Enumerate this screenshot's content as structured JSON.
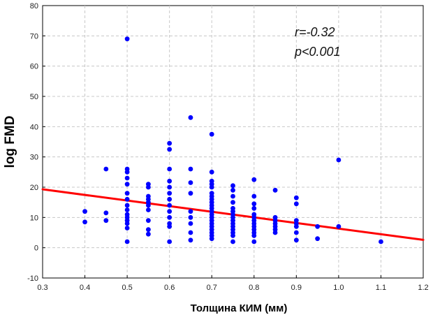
{
  "chart_data": {
    "type": "scatter",
    "xlabel": "Толщина КИМ (мм)",
    "ylabel": "log FMD",
    "xlim": [
      0.3,
      1.2
    ],
    "ylim": [
      -10,
      80
    ],
    "x_ticks": [
      "0.3",
      "0.4",
      "0.5",
      "0.6",
      "0.7",
      "0.8",
      "0.9",
      "1.0",
      "1.1",
      "1.2"
    ],
    "y_ticks": [
      "-10",
      "0",
      "10",
      "20",
      "30",
      "40",
      "50",
      "60",
      "70",
      "80"
    ],
    "grid": true,
    "point_color": "#0000ff",
    "line_color": "#ff0000",
    "annotations": [
      "r=-0.32",
      "p<0.001"
    ],
    "points": [
      {
        "x": 0.4,
        "y": 12
      },
      {
        "x": 0.4,
        "y": 8.5
      },
      {
        "x": 0.45,
        "y": 26
      },
      {
        "x": 0.45,
        "y": 11.5
      },
      {
        "x": 0.45,
        "y": 9
      },
      {
        "x": 0.5,
        "y": 69
      },
      {
        "x": 0.5,
        "y": 26
      },
      {
        "x": 0.5,
        "y": 25
      },
      {
        "x": 0.5,
        "y": 23
      },
      {
        "x": 0.5,
        "y": 21
      },
      {
        "x": 0.5,
        "y": 18
      },
      {
        "x": 0.5,
        "y": 16
      },
      {
        "x": 0.5,
        "y": 14
      },
      {
        "x": 0.5,
        "y": 12.5
      },
      {
        "x": 0.5,
        "y": 11
      },
      {
        "x": 0.5,
        "y": 10
      },
      {
        "x": 0.5,
        "y": 9
      },
      {
        "x": 0.5,
        "y": 8
      },
      {
        "x": 0.5,
        "y": 6.5
      },
      {
        "x": 0.5,
        "y": 2
      },
      {
        "x": 0.55,
        "y": 21
      },
      {
        "x": 0.55,
        "y": 20
      },
      {
        "x": 0.55,
        "y": 17
      },
      {
        "x": 0.55,
        "y": 16
      },
      {
        "x": 0.55,
        "y": 15
      },
      {
        "x": 0.55,
        "y": 14
      },
      {
        "x": 0.55,
        "y": 12.5
      },
      {
        "x": 0.55,
        "y": 9
      },
      {
        "x": 0.55,
        "y": 6
      },
      {
        "x": 0.55,
        "y": 4.5
      },
      {
        "x": 0.6,
        "y": 34.5
      },
      {
        "x": 0.6,
        "y": 32.5
      },
      {
        "x": 0.6,
        "y": 26
      },
      {
        "x": 0.6,
        "y": 22
      },
      {
        "x": 0.6,
        "y": 20
      },
      {
        "x": 0.6,
        "y": 18
      },
      {
        "x": 0.6,
        "y": 16
      },
      {
        "x": 0.6,
        "y": 14
      },
      {
        "x": 0.6,
        "y": 12
      },
      {
        "x": 0.6,
        "y": 10
      },
      {
        "x": 0.6,
        "y": 8
      },
      {
        "x": 0.6,
        "y": 7
      },
      {
        "x": 0.6,
        "y": 2
      },
      {
        "x": 0.65,
        "y": 43
      },
      {
        "x": 0.65,
        "y": 26
      },
      {
        "x": 0.65,
        "y": 21.5
      },
      {
        "x": 0.65,
        "y": 18
      },
      {
        "x": 0.65,
        "y": 12
      },
      {
        "x": 0.65,
        "y": 10
      },
      {
        "x": 0.65,
        "y": 8
      },
      {
        "x": 0.65,
        "y": 5
      },
      {
        "x": 0.65,
        "y": 2.5
      },
      {
        "x": 0.7,
        "y": 37.5
      },
      {
        "x": 0.7,
        "y": 25
      },
      {
        "x": 0.7,
        "y": 22
      },
      {
        "x": 0.7,
        "y": 21
      },
      {
        "x": 0.7,
        "y": 20
      },
      {
        "x": 0.7,
        "y": 18
      },
      {
        "x": 0.7,
        "y": 17
      },
      {
        "x": 0.7,
        "y": 16
      },
      {
        "x": 0.7,
        "y": 15
      },
      {
        "x": 0.7,
        "y": 14
      },
      {
        "x": 0.7,
        "y": 13
      },
      {
        "x": 0.7,
        "y": 12
      },
      {
        "x": 0.7,
        "y": 11
      },
      {
        "x": 0.7,
        "y": 10
      },
      {
        "x": 0.7,
        "y": 9
      },
      {
        "x": 0.7,
        "y": 8
      },
      {
        "x": 0.7,
        "y": 7
      },
      {
        "x": 0.7,
        "y": 6
      },
      {
        "x": 0.7,
        "y": 5
      },
      {
        "x": 0.7,
        "y": 4
      },
      {
        "x": 0.7,
        "y": 3
      },
      {
        "x": 0.75,
        "y": 20.5
      },
      {
        "x": 0.75,
        "y": 19
      },
      {
        "x": 0.75,
        "y": 17
      },
      {
        "x": 0.75,
        "y": 15
      },
      {
        "x": 0.75,
        "y": 13
      },
      {
        "x": 0.75,
        "y": 12
      },
      {
        "x": 0.75,
        "y": 11
      },
      {
        "x": 0.75,
        "y": 10
      },
      {
        "x": 0.75,
        "y": 9
      },
      {
        "x": 0.75,
        "y": 8
      },
      {
        "x": 0.75,
        "y": 7
      },
      {
        "x": 0.75,
        "y": 6
      },
      {
        "x": 0.75,
        "y": 5
      },
      {
        "x": 0.75,
        "y": 4
      },
      {
        "x": 0.75,
        "y": 2
      },
      {
        "x": 0.8,
        "y": 22.5
      },
      {
        "x": 0.8,
        "y": 17
      },
      {
        "x": 0.8,
        "y": 14.5
      },
      {
        "x": 0.8,
        "y": 13
      },
      {
        "x": 0.8,
        "y": 11
      },
      {
        "x": 0.8,
        "y": 10
      },
      {
        "x": 0.8,
        "y": 9
      },
      {
        "x": 0.8,
        "y": 8
      },
      {
        "x": 0.8,
        "y": 7
      },
      {
        "x": 0.8,
        "y": 6
      },
      {
        "x": 0.8,
        "y": 5
      },
      {
        "x": 0.8,
        "y": 4
      },
      {
        "x": 0.8,
        "y": 2
      },
      {
        "x": 0.85,
        "y": 19
      },
      {
        "x": 0.85,
        "y": 10
      },
      {
        "x": 0.85,
        "y": 9
      },
      {
        "x": 0.85,
        "y": 8
      },
      {
        "x": 0.85,
        "y": 7
      },
      {
        "x": 0.85,
        "y": 6
      },
      {
        "x": 0.85,
        "y": 5
      },
      {
        "x": 0.9,
        "y": 16.5
      },
      {
        "x": 0.9,
        "y": 14.5
      },
      {
        "x": 0.9,
        "y": 9
      },
      {
        "x": 0.9,
        "y": 8
      },
      {
        "x": 0.9,
        "y": 7
      },
      {
        "x": 0.9,
        "y": 5
      },
      {
        "x": 0.9,
        "y": 2.5
      },
      {
        "x": 0.95,
        "y": 7
      },
      {
        "x": 0.95,
        "y": 3
      },
      {
        "x": 1.0,
        "y": 29
      },
      {
        "x": 1.0,
        "y": 7
      },
      {
        "x": 1.1,
        "y": 2
      }
    ],
    "regression_line": {
      "x": [
        0.3,
        1.2
      ],
      "y": [
        19.3,
        2.6
      ]
    }
  }
}
